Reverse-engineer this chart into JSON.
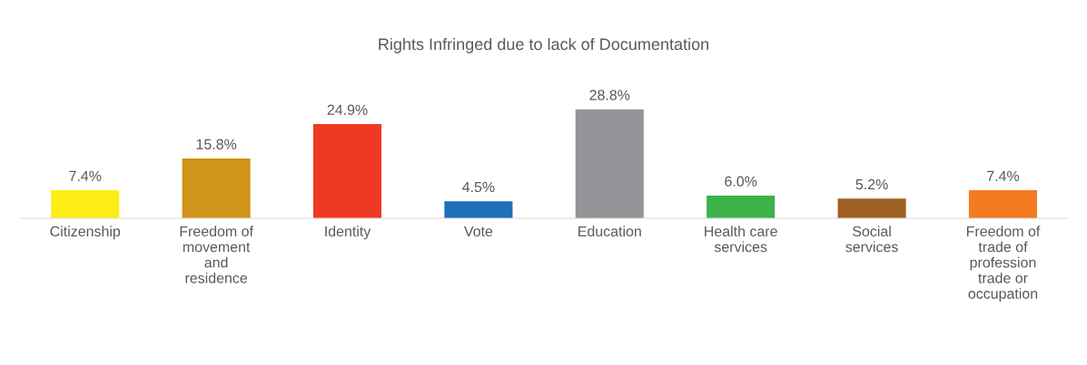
{
  "chart_data": {
    "type": "bar",
    "title": "Rights Infringed due to lack of Documentation",
    "categories": [
      "Citizenship",
      "Freedom of movement and residence",
      "Identity",
      "Vote",
      "Education",
      "Health care services",
      "Social services",
      "Freedom of trade of profession trade or occupation"
    ],
    "values": [
      7.4,
      15.8,
      24.9,
      4.5,
      28.8,
      6.0,
      5.2,
      7.4
    ],
    "value_labels": [
      "7.4%",
      "15.8%",
      "24.9%",
      "4.5%",
      "28.8%",
      "6.0%",
      "5.2%",
      "7.4%"
    ],
    "colors": [
      "#fdee16",
      "#d09418",
      "#ee3a23",
      "#1f6fba",
      "#939598",
      "#3bb34a",
      "#a05f23",
      "#f47b20"
    ],
    "grid": false,
    "legend": false
  }
}
